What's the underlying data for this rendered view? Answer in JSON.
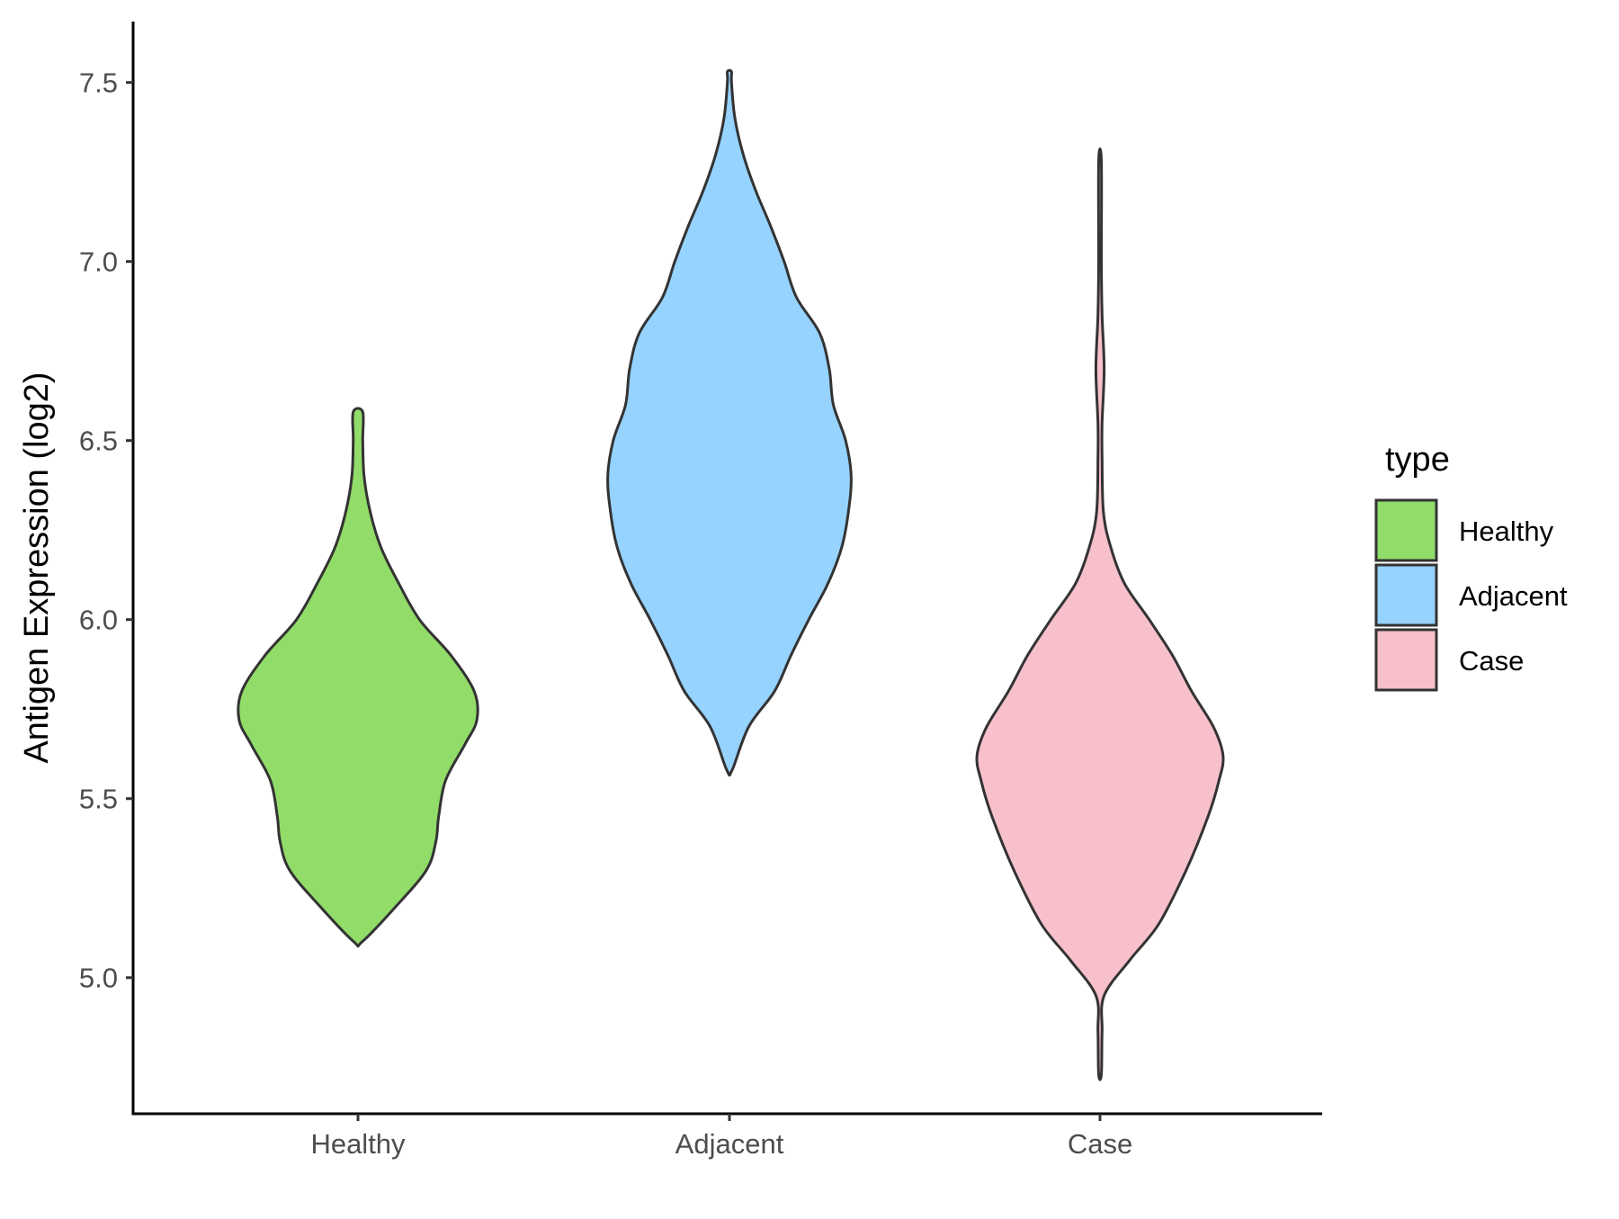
{
  "chart_data": {
    "type": "violin",
    "ylabel": "Antigen Expression (log2)",
    "xlabel": "",
    "ylim": [
      4.62,
      7.67
    ],
    "yticks": [
      5.0,
      5.5,
      6.0,
      6.5,
      7.0,
      7.5
    ],
    "ytick_labels": [
      "5.0",
      "5.5",
      "6.0",
      "6.5",
      "7.0",
      "7.5"
    ],
    "categories": [
      "Healthy",
      "Adjacent",
      "Case"
    ],
    "grid": false,
    "legend": {
      "title": "type",
      "position": "right",
      "items": [
        {
          "label": "Healthy",
          "color": "#92dc6a"
        },
        {
          "label": "Adjacent",
          "color": "#96d3ff"
        },
        {
          "label": "Case",
          "color": "#f7c0cb"
        }
      ]
    },
    "series": [
      {
        "category": "Healthy",
        "color": "#92dc6a",
        "min": 5.1,
        "max": 6.58,
        "density_profile": [
          [
            5.1,
            0.03
          ],
          [
            5.2,
            0.28
          ],
          [
            5.3,
            0.5
          ],
          [
            5.38,
            0.57
          ],
          [
            5.45,
            0.59
          ],
          [
            5.55,
            0.64
          ],
          [
            5.65,
            0.78
          ],
          [
            5.72,
            0.87
          ],
          [
            5.8,
            0.85
          ],
          [
            5.9,
            0.68
          ],
          [
            6.0,
            0.45
          ],
          [
            6.1,
            0.3
          ],
          [
            6.2,
            0.17
          ],
          [
            6.3,
            0.09
          ],
          [
            6.4,
            0.045
          ],
          [
            6.5,
            0.035
          ],
          [
            6.58,
            0.035
          ]
        ]
      },
      {
        "category": "Adjacent",
        "color": "#96d3ff",
        "min": 5.58,
        "max": 7.53,
        "density_profile": [
          [
            5.58,
            0.02
          ],
          [
            5.7,
            0.14
          ],
          [
            5.8,
            0.33
          ],
          [
            5.9,
            0.45
          ],
          [
            6.0,
            0.58
          ],
          [
            6.1,
            0.72
          ],
          [
            6.2,
            0.82
          ],
          [
            6.3,
            0.87
          ],
          [
            6.4,
            0.89
          ],
          [
            6.5,
            0.85
          ],
          [
            6.6,
            0.76
          ],
          [
            6.7,
            0.73
          ],
          [
            6.8,
            0.66
          ],
          [
            6.9,
            0.49
          ],
          [
            7.0,
            0.4
          ],
          [
            7.1,
            0.3
          ],
          [
            7.2,
            0.19
          ],
          [
            7.3,
            0.1
          ],
          [
            7.4,
            0.04
          ],
          [
            7.5,
            0.015
          ],
          [
            7.53,
            0.015
          ]
        ]
      },
      {
        "category": "Case",
        "color": "#f7c0cb",
        "min": 4.73,
        "max": 7.28,
        "density_profile": [
          [
            4.73,
            0.01
          ],
          [
            4.85,
            0.015
          ],
          [
            4.95,
            0.03
          ],
          [
            5.05,
            0.22
          ],
          [
            5.15,
            0.43
          ],
          [
            5.3,
            0.63
          ],
          [
            5.45,
            0.79
          ],
          [
            5.55,
            0.87
          ],
          [
            5.62,
            0.9
          ],
          [
            5.7,
            0.83
          ],
          [
            5.8,
            0.67
          ],
          [
            5.9,
            0.53
          ],
          [
            6.0,
            0.36
          ],
          [
            6.1,
            0.18
          ],
          [
            6.2,
            0.08
          ],
          [
            6.3,
            0.025
          ],
          [
            6.45,
            0.015
          ],
          [
            6.55,
            0.015
          ],
          [
            6.7,
            0.03
          ],
          [
            6.85,
            0.015
          ],
          [
            7.0,
            0.01
          ],
          [
            7.28,
            0.01
          ]
        ]
      }
    ]
  }
}
